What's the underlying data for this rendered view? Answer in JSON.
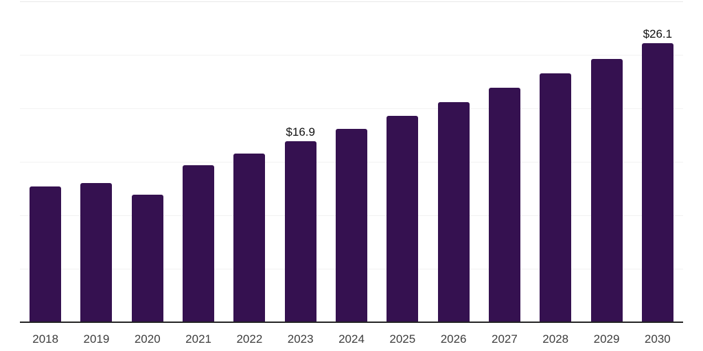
{
  "chart": {
    "background": "#ffffff",
    "bar_color": "#351150",
    "axis_color": "#232323",
    "grid_color": "#f2f2f2",
    "grid_color_top": "#e8e8e8",
    "tick_label_color": "#3d3d3d",
    "value_label_color": "#101010"
  },
  "chart_data": {
    "type": "bar",
    "title": "",
    "xlabel": "",
    "ylabel": "",
    "categories": [
      "2018",
      "2019",
      "2020",
      "2021",
      "2022",
      "2023",
      "2024",
      "2025",
      "2026",
      "2027",
      "2028",
      "2029",
      "2030"
    ],
    "values": [
      12.7,
      13.0,
      11.9,
      14.7,
      15.8,
      16.9,
      18.1,
      19.3,
      20.6,
      21.9,
      23.3,
      24.6,
      26.1
    ],
    "labels": [
      null,
      null,
      null,
      null,
      null,
      "$16.9",
      null,
      null,
      null,
      null,
      null,
      null,
      "$26.1"
    ],
    "value_prefix": "$",
    "ylim": [
      0,
      30
    ],
    "grid_step": 5,
    "grid": "horizontal-only",
    "legend": "none",
    "y_tick_labels": "none"
  }
}
